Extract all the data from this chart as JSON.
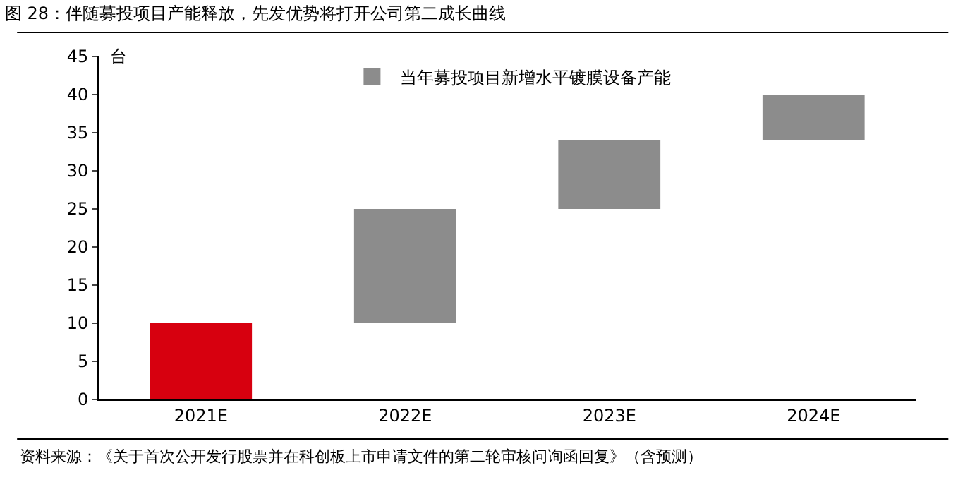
{
  "chart_data": {
    "type": "bar",
    "title": "图 28：伴随募投项目产能释放，先发优势将打开公司第二成长曲线",
    "ylabel": "台",
    "categories": [
      "2021E",
      "2022E",
      "2023E",
      "2024E"
    ],
    "series": [
      {
        "color": "#d7000f",
        "values": [
          10,
          null,
          null,
          null
        ],
        "base": [
          0,
          null,
          null,
          null
        ]
      },
      {
        "name": "当年募投项目新增水平镀膜设备产能",
        "color": "#8c8c8c",
        "values": [
          null,
          15,
          9,
          6
        ],
        "base": [
          null,
          10,
          25,
          34
        ]
      }
    ],
    "ylim": [
      0,
      45
    ],
    "yticks": [
      0,
      5,
      10,
      15,
      20,
      25,
      30,
      35,
      40,
      45
    ],
    "legend": "top",
    "annotations": [
      "资料来源：《关于首次公开发行股票并在科创板上市申请文件的第二轮审核问询函回复》（含预测）"
    ]
  }
}
